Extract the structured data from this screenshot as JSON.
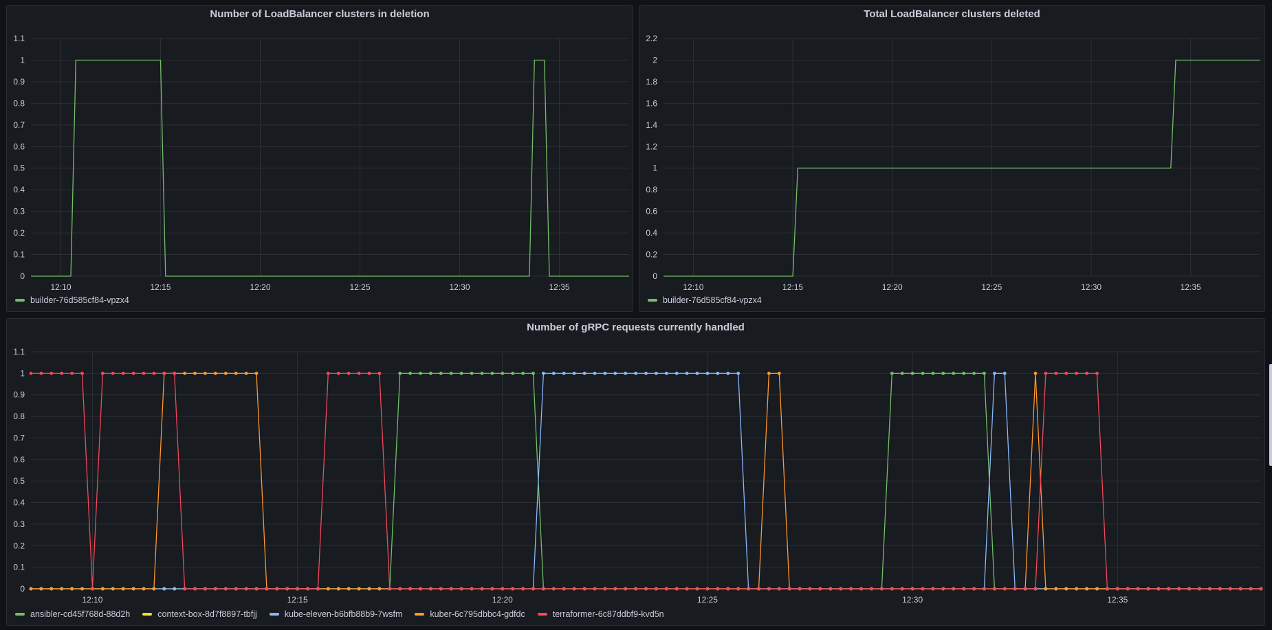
{
  "chart_data": [
    {
      "type": "line",
      "title": "Number of LoadBalancer clusters in deletion",
      "ylim": [
        0,
        1.1
      ],
      "yticks": [
        0,
        0.1,
        0.2,
        0.3,
        0.4,
        0.5,
        0.6,
        0.7,
        0.8,
        0.9,
        1,
        1.1
      ],
      "xlim": [
        "12:08:30",
        "12:38:30"
      ],
      "xticks": [
        "12:10",
        "12:15",
        "12:20",
        "12:25",
        "12:30",
        "12:35"
      ],
      "grid": true,
      "legend_position": "bottom-left",
      "series": [
        {
          "name": "builder-76d585cf84-vpzx4",
          "color": "#73bf69",
          "x": [
            "12:08:30",
            "12:10:30",
            "12:10:45",
            "12:15:00",
            "12:15:15",
            "12:33:30",
            "12:33:45",
            "12:34:15",
            "12:34:30",
            "12:38:30"
          ],
          "y": [
            0,
            0,
            1,
            1,
            0,
            0,
            1,
            1,
            0,
            0
          ]
        }
      ]
    },
    {
      "type": "line",
      "title": "Total LoadBalancer clusters deleted",
      "ylim": [
        0,
        2.2
      ],
      "yticks": [
        0,
        0.2,
        0.4,
        0.6,
        0.8,
        1,
        1.2,
        1.4,
        1.6,
        1.8,
        2,
        2.2
      ],
      "xlim": [
        "12:08:30",
        "12:38:30"
      ],
      "xticks": [
        "12:10",
        "12:15",
        "12:20",
        "12:25",
        "12:30",
        "12:35"
      ],
      "grid": true,
      "legend_position": "bottom-left",
      "series": [
        {
          "name": "builder-76d585cf84-vpzx4",
          "color": "#73bf69",
          "x": [
            "12:08:30",
            "12:15:00",
            "12:15:15",
            "12:34:00",
            "12:34:15",
            "12:38:30"
          ],
          "y": [
            0,
            0,
            1,
            1,
            2,
            2
          ]
        }
      ]
    },
    {
      "type": "line",
      "title": "Number of gRPC requests currently handled",
      "ylim": [
        0,
        1.1
      ],
      "yticks": [
        0,
        0.1,
        0.2,
        0.3,
        0.4,
        0.5,
        0.6,
        0.7,
        0.8,
        0.9,
        1,
        1.1
      ],
      "xlim": [
        "12:08:30",
        "12:38:30"
      ],
      "xticks": [
        "12:10",
        "12:15",
        "12:20",
        "12:25",
        "12:30",
        "12:35"
      ],
      "grid": true,
      "points_shown": true,
      "sample_step_seconds": 15,
      "legend_position": "bottom-left",
      "series": [
        {
          "name": "ansibler-cd45f768d-88d2h",
          "color": "#73bf69",
          "active": [
            [
              "12:17:30",
              "12:17:30"
            ],
            [
              "12:17:45",
              "12:20:45"
            ],
            [
              "12:29:30",
              "12:31:45"
            ]
          ]
        },
        {
          "name": "context-box-8d7f8897-tbfjj",
          "color": "#fade2a",
          "active": []
        },
        {
          "name": "kube-eleven-b6bfb88b9-7wsfm",
          "color": "#8ab8ff",
          "active": [
            [
              "12:21:00",
              "12:25:45"
            ],
            [
              "12:32:00",
              "12:32:15"
            ]
          ]
        },
        {
          "name": "kuber-6c795dbbc4-gdfdc",
          "color": "#ff9830",
          "active": [
            [
              "12:11:45",
              "12:14:00"
            ],
            [
              "12:26:30",
              "12:26:45"
            ],
            [
              "12:33:00",
              "12:33:00"
            ]
          ]
        },
        {
          "name": "terraformer-6c87ddbf9-kvd5n",
          "color": "#f2495c",
          "active": [
            [
              "12:08:30",
              "12:09:45"
            ],
            [
              "12:10:15",
              "12:12:00"
            ],
            [
              "12:15:45",
              "12:17:00"
            ],
            [
              "12:33:15",
              "12:34:30"
            ]
          ]
        }
      ]
    }
  ]
}
